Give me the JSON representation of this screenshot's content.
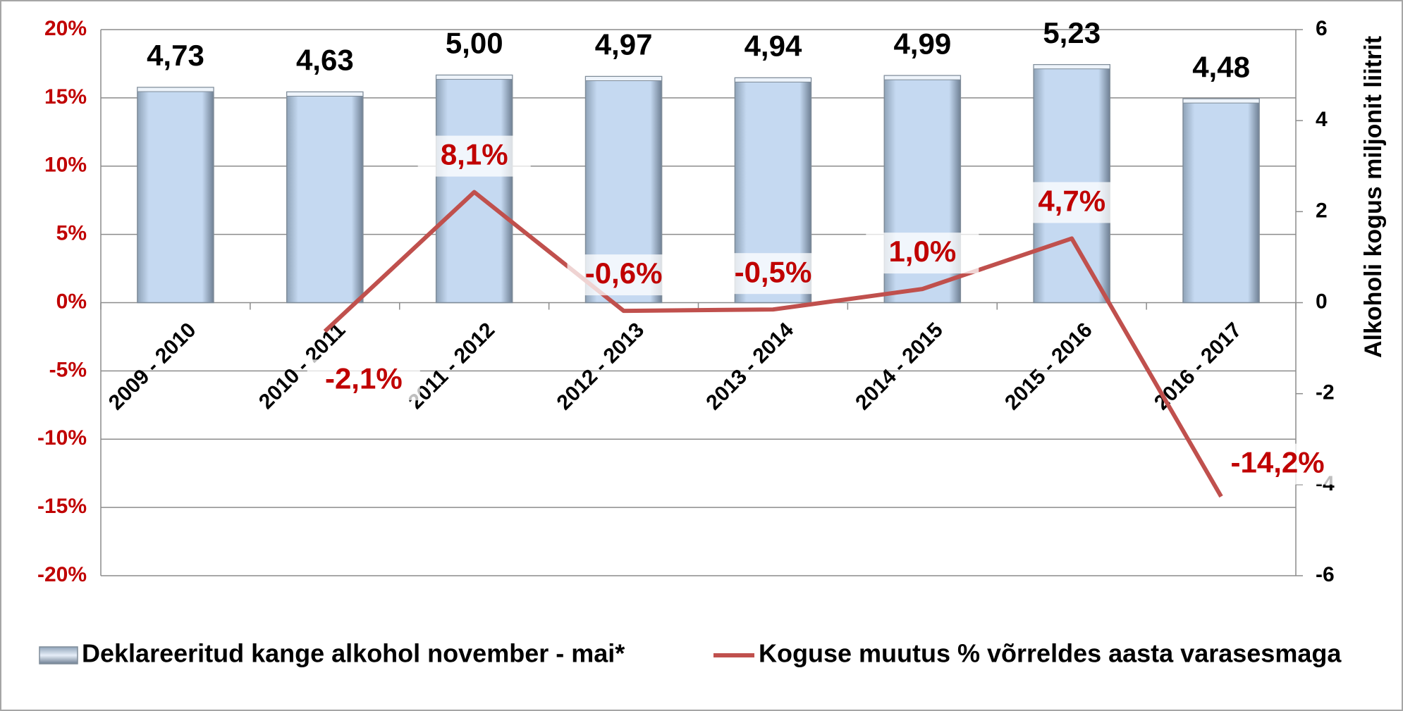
{
  "chart_data": {
    "type": "bar",
    "categories": [
      "2009 - 2010",
      "2010 - 2011",
      "2011 - 2012",
      "2012 - 2013",
      "2013 - 2014",
      "2014 - 2015",
      "2015 - 2016",
      "2016 - 2017"
    ],
    "series": [
      {
        "name": "Deklareeritud kange alkohol november - mai*",
        "type": "bar",
        "axis": "y2",
        "color": "#c5d9f1",
        "values": [
          4.73,
          4.63,
          5.0,
          4.97,
          4.94,
          4.99,
          5.23,
          4.48
        ],
        "value_labels": [
          "4,73",
          "4,63",
          "5,00",
          "4,97",
          "4,94",
          "4,99",
          "5,23",
          "4,48"
        ]
      },
      {
        "name": "Koguse muutus % võrreldes aasta varasesmaga",
        "type": "line",
        "axis": "y",
        "color": "#c0504d",
        "values": [
          null,
          -2.1,
          8.1,
          -0.6,
          -0.5,
          1.0,
          4.7,
          -14.2
        ],
        "value_labels": [
          null,
          "-2,1%",
          "8,1%",
          "-0,6%",
          "-0,5%",
          "1,0%",
          "4,7%",
          "-14,2%"
        ]
      }
    ],
    "ylim": [
      -20,
      20
    ],
    "yticks": [
      {
        "value": -20,
        "label": "-20%"
      },
      {
        "value": -15,
        "label": "-15%"
      },
      {
        "value": -10,
        "label": "-10%"
      },
      {
        "value": -5,
        "label": "-5%"
      },
      {
        "value": 0,
        "label": "0%"
      },
      {
        "value": 5,
        "label": "5%"
      },
      {
        "value": 10,
        "label": "10%"
      },
      {
        "value": 15,
        "label": "15%"
      },
      {
        "value": 20,
        "label": "20%"
      }
    ],
    "y2lim": [
      -6,
      6
    ],
    "y2ticks": [
      -6,
      -4,
      -2,
      0,
      2,
      4,
      6
    ],
    "y2_label": "Alkoholi kogus miljonit liitrit",
    "grid": true,
    "legend": "bottom"
  }
}
